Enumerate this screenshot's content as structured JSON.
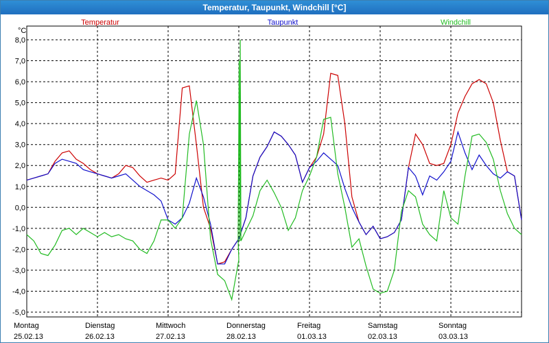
{
  "window": {
    "title": "Temperatur, Taupunkt, Windchill [°C]"
  },
  "chart_data": {
    "type": "line",
    "title": "Temperatur, Taupunkt, Windchill [°C]",
    "ylabel": "°C",
    "ylim": [
      -5,
      8
    ],
    "xlim": [
      0,
      7
    ],
    "grid": true,
    "legend_placement": "top",
    "y_ticks": [
      "8,0",
      "7,0",
      "6,0",
      "5,0",
      "4,0",
      "3,0",
      "2,0",
      "1,0",
      "0,0",
      "-1,0",
      "-2,0",
      "-3,0",
      "-4,0",
      "-5,0"
    ],
    "x_days": [
      {
        "day": "Montag",
        "date": "25.02.13"
      },
      {
        "day": "Dienstag",
        "date": "26.02.13"
      },
      {
        "day": "Mittwoch",
        "date": "27.02.13"
      },
      {
        "day": "Donnerstag",
        "date": "28.02.13"
      },
      {
        "day": "Freitag",
        "date": "01.03.13"
      },
      {
        "day": "Samstag",
        "date": "02.03.13"
      },
      {
        "day": "Sonntag",
        "date": "03.03.13"
      }
    ],
    "series": [
      {
        "name": "Temperatur",
        "color": "#cc0000",
        "x": [
          0,
          0.1,
          0.2,
          0.3,
          0.4,
          0.5,
          0.6,
          0.7,
          0.8,
          0.9,
          1.0,
          1.1,
          1.2,
          1.3,
          1.4,
          1.5,
          1.6,
          1.7,
          1.8,
          1.9,
          2.0,
          2.1,
          2.2,
          2.3,
          2.4,
          2.5,
          2.6,
          2.7,
          2.8,
          2.9,
          3.0,
          3.1,
          3.2,
          3.3,
          3.4,
          3.5,
          3.6,
          3.7,
          3.8,
          3.9,
          4.0,
          4.1,
          4.2,
          4.3,
          4.4,
          4.5,
          4.6,
          4.7,
          4.8,
          4.9,
          5.0,
          5.1,
          5.2,
          5.3,
          5.4,
          5.5,
          5.6,
          5.7,
          5.8,
          5.9,
          6.0,
          6.1,
          6.2,
          6.3,
          6.4,
          6.5,
          6.6,
          6.7,
          6.8,
          6.9,
          7.0
        ],
        "values": [
          1.3,
          1.4,
          1.5,
          1.6,
          2.2,
          2.6,
          2.7,
          2.3,
          2.1,
          1.8,
          1.6,
          1.5,
          1.4,
          1.6,
          2.0,
          1.9,
          1.5,
          1.2,
          1.3,
          1.4,
          1.3,
          1.6,
          5.7,
          5.8,
          3.0,
          0.0,
          -1.0,
          -2.7,
          -2.6,
          -2.0,
          -1.5,
          -0.5,
          1.5,
          2.4,
          2.9,
          3.6,
          3.4,
          3.0,
          2.5,
          1.2,
          1.9,
          2.4,
          3.5,
          6.4,
          6.3,
          4.0,
          0.5,
          -0.7,
          -1.3,
          -0.9,
          -1.5,
          -1.4,
          -1.2,
          -0.6,
          1.9,
          3.5,
          3.0,
          2.1,
          2.0,
          2.1,
          3.0,
          4.5,
          5.3,
          5.9,
          6.1,
          5.9,
          5.0,
          3.2,
          1.7,
          1.5,
          -0.6
        ]
      },
      {
        "name": "Taupunkt",
        "color": "#1010cc",
        "x": [
          0,
          0.1,
          0.2,
          0.3,
          0.4,
          0.5,
          0.6,
          0.7,
          0.8,
          0.9,
          1.0,
          1.1,
          1.2,
          1.3,
          1.4,
          1.5,
          1.6,
          1.7,
          1.8,
          1.9,
          2.0,
          2.1,
          2.2,
          2.3,
          2.4,
          2.5,
          2.6,
          2.7,
          2.8,
          2.9,
          3.0,
          3.1,
          3.2,
          3.3,
          3.4,
          3.5,
          3.6,
          3.7,
          3.8,
          3.9,
          4.0,
          4.1,
          4.2,
          4.3,
          4.4,
          4.5,
          4.6,
          4.7,
          4.8,
          4.9,
          5.0,
          5.1,
          5.2,
          5.3,
          5.4,
          5.5,
          5.6,
          5.7,
          5.8,
          5.9,
          6.0,
          6.1,
          6.2,
          6.3,
          6.4,
          6.5,
          6.6,
          6.7,
          6.8,
          6.9,
          7.0
        ],
        "values": [
          1.3,
          1.4,
          1.5,
          1.6,
          2.1,
          2.3,
          2.2,
          2.1,
          1.8,
          1.7,
          1.6,
          1.5,
          1.4,
          1.5,
          1.6,
          1.3,
          1.0,
          0.8,
          0.6,
          0.3,
          -0.6,
          -0.8,
          -0.5,
          0.2,
          1.4,
          0.5,
          -0.8,
          -2.7,
          -2.7,
          -2.0,
          -1.5,
          -0.5,
          1.5,
          2.4,
          2.9,
          3.6,
          3.4,
          3.0,
          2.5,
          1.2,
          1.9,
          2.2,
          2.6,
          2.3,
          2.0,
          0.9,
          0.0,
          -0.7,
          -1.3,
          -0.9,
          -1.5,
          -1.4,
          -1.2,
          -0.6,
          1.9,
          1.5,
          0.6,
          1.5,
          1.3,
          1.7,
          2.2,
          3.6,
          2.6,
          1.8,
          2.5,
          2.0,
          1.6,
          1.4,
          1.7,
          1.5,
          -0.6
        ]
      },
      {
        "name": "Windchill",
        "color": "#22bb22",
        "x": [
          0,
          0.1,
          0.2,
          0.3,
          0.4,
          0.5,
          0.6,
          0.7,
          0.8,
          0.9,
          1.0,
          1.1,
          1.2,
          1.3,
          1.4,
          1.5,
          1.6,
          1.7,
          1.8,
          1.9,
          2.0,
          2.1,
          2.2,
          2.3,
          2.4,
          2.5,
          2.6,
          2.7,
          2.8,
          2.9,
          3.0,
          3.1,
          3.2,
          3.3,
          3.4,
          3.5,
          3.6,
          3.7,
          3.8,
          3.9,
          4.0,
          4.1,
          4.2,
          4.3,
          4.4,
          4.5,
          4.6,
          4.7,
          4.8,
          4.9,
          5.0,
          5.1,
          5.2,
          5.3,
          5.4,
          5.5,
          5.6,
          5.7,
          5.8,
          5.9,
          6.0,
          6.1,
          6.2,
          6.3,
          6.4,
          6.5,
          6.6,
          6.7,
          6.8,
          6.9,
          7.0
        ],
        "values": [
          -1.3,
          -1.6,
          -2.2,
          -2.3,
          -1.8,
          -1.1,
          -1.0,
          -1.3,
          -1.0,
          -1.2,
          -1.4,
          -1.2,
          -1.4,
          -1.3,
          -1.5,
          -1.6,
          -2.0,
          -2.2,
          -1.6,
          -0.6,
          -0.6,
          -1.0,
          -0.5,
          3.5,
          5.1,
          3.0,
          -1.5,
          -3.2,
          -3.5,
          -4.4,
          -2.5,
          -1.1,
          -0.4,
          0.8,
          1.3,
          0.7,
          0.0,
          -1.1,
          -0.5,
          0.8,
          1.5,
          2.4,
          4.2,
          4.3,
          1.6,
          0.0,
          -1.9,
          -1.5,
          -2.8,
          -3.9,
          -4.1,
          -4.0,
          -3.0,
          -0.2,
          0.8,
          0.5,
          -0.8,
          -1.3,
          -1.6,
          0.8,
          -0.5,
          -0.8,
          1.5,
          3.4,
          3.5,
          3.1,
          2.3,
          0.8,
          -0.3,
          -1.0,
          -1.3
        ]
      }
    ],
    "spike": {
      "series": "Windchill",
      "x": 3.02,
      "peak": 8.0,
      "secondary_peak": 7.0,
      "floor": -1.6
    }
  }
}
